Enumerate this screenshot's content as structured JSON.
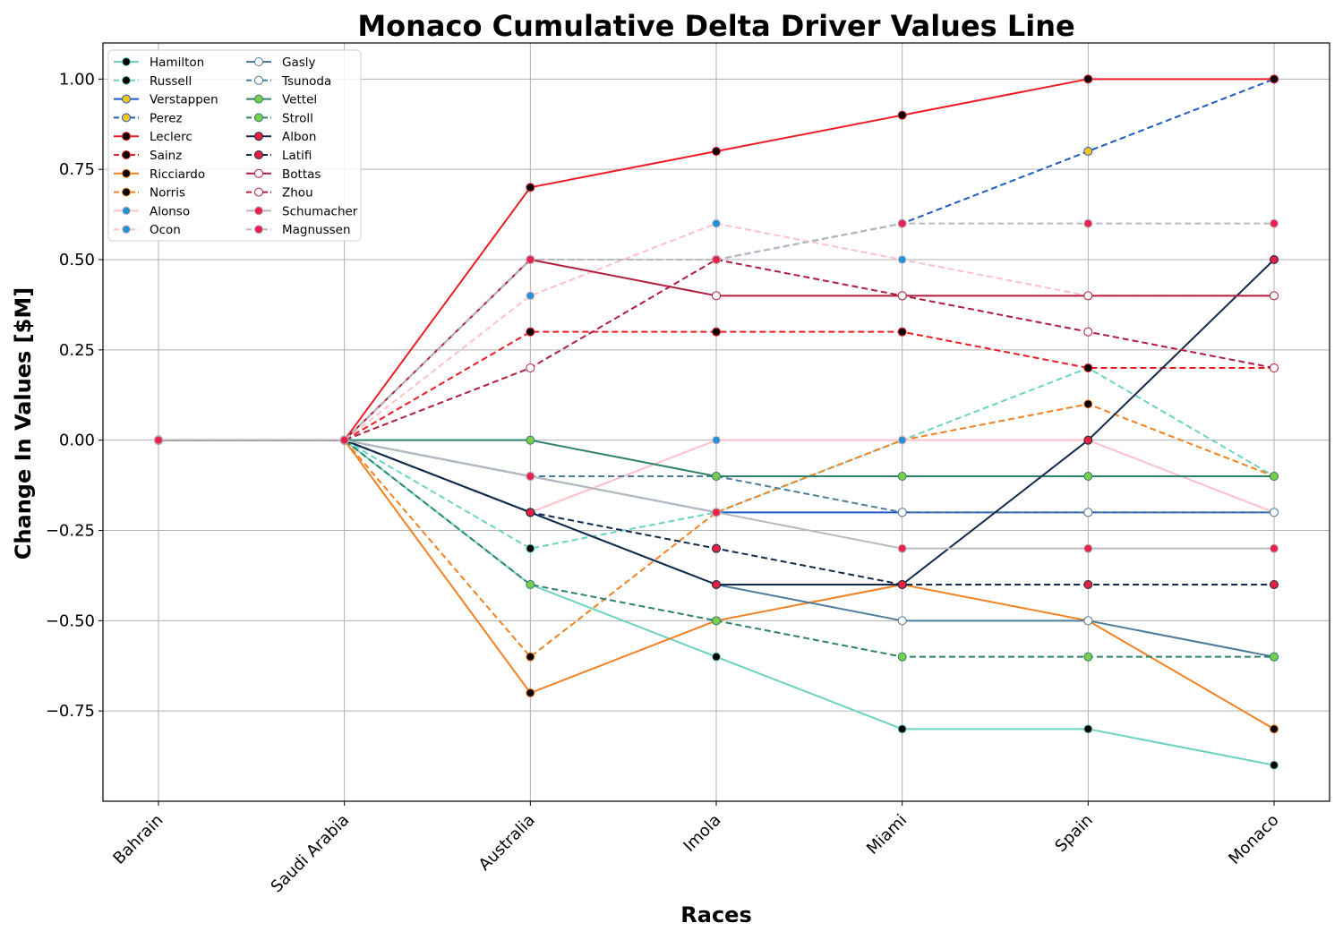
{
  "chart_data": {
    "type": "line",
    "title": "Monaco Cumulative Delta Driver Values Line",
    "xlabel": "Races",
    "ylabel": "Change In Values [$M]",
    "categories": [
      "Bahrain",
      "Saudi Arabia",
      "Australia",
      "Imola",
      "Miami",
      "Spain",
      "Monaco"
    ],
    "ylim": [
      -1.0,
      1.1
    ],
    "yticks": [
      -0.75,
      -0.5,
      -0.25,
      0.0,
      0.25,
      0.5,
      0.75,
      1.0
    ],
    "ytick_labels": [
      "−0.75",
      "−0.50",
      "−0.25",
      "0.00",
      "0.25",
      "0.50",
      "0.75",
      "1.00"
    ],
    "grid": true,
    "legend_position": "top-left",
    "legend_columns": 2,
    "series": [
      {
        "name": "Hamilton",
        "color": "#6CD3BF",
        "dash": false,
        "marker_face": "#000000",
        "marker_edge": "#6CD3BF",
        "values": [
          0,
          0,
          -0.4,
          -0.6,
          -0.8,
          -0.8,
          -0.9
        ]
      },
      {
        "name": "Russell",
        "color": "#6CD3BF",
        "dash": true,
        "marker_face": "#000000",
        "marker_edge": "#6CD3BF",
        "values": [
          0,
          0,
          -0.3,
          -0.2,
          0.0,
          0.2,
          -0.1
        ]
      },
      {
        "name": "Verstappen",
        "color": "#1E5BC6",
        "dash": false,
        "marker_face": "#F5C518",
        "marker_edge": "#1E5BC6",
        "values": [
          0,
          0,
          -0.1,
          -0.2,
          -0.2,
          -0.2,
          -0.2
        ]
      },
      {
        "name": "Perez",
        "color": "#1E5BC6",
        "dash": true,
        "marker_face": "#F5C518",
        "marker_edge": "#1E5BC6",
        "values": [
          0,
          0,
          0.5,
          0.5,
          0.6,
          0.8,
          1.0
        ]
      },
      {
        "name": "Leclerc",
        "color": "#ED1C24",
        "dash": false,
        "marker_face": "#000000",
        "marker_edge": "#ED1C24",
        "values": [
          0,
          0,
          0.7,
          0.8,
          0.9,
          1.0,
          1.0
        ]
      },
      {
        "name": "Sainz",
        "color": "#ED1C24",
        "dash": true,
        "marker_face": "#000000",
        "marker_edge": "#ED1C24",
        "values": [
          0,
          0,
          0.3,
          0.3,
          0.3,
          0.2,
          0.2
        ]
      },
      {
        "name": "Ricciardo",
        "color": "#F58020",
        "dash": false,
        "marker_face": "#000000",
        "marker_edge": "#F58020",
        "values": [
          0,
          0,
          -0.7,
          -0.5,
          -0.4,
          -0.5,
          -0.8
        ]
      },
      {
        "name": "Norris",
        "color": "#F58020",
        "dash": true,
        "marker_face": "#000000",
        "marker_edge": "#F58020",
        "values": [
          0,
          0,
          -0.6,
          -0.2,
          0.0,
          0.1,
          -0.1
        ]
      },
      {
        "name": "Alonso",
        "color": "#FFC0CB",
        "dash": false,
        "marker_face": "#2293D1",
        "marker_edge": "#FFC0CB",
        "values": [
          0,
          0,
          -0.2,
          0.0,
          0.0,
          0.0,
          -0.2
        ]
      },
      {
        "name": "Ocon",
        "color": "#FFC0CB",
        "dash": true,
        "marker_face": "#2293D1",
        "marker_edge": "#FFC0CB",
        "values": [
          0,
          0,
          0.4,
          0.6,
          0.5,
          0.4,
          0.4
        ]
      },
      {
        "name": "Gasly",
        "color": "#4E7C9B",
        "dash": false,
        "marker_face": "#FFFFFF",
        "marker_edge": "#4E7C9B",
        "values": [
          0,
          0,
          -0.2,
          -0.4,
          -0.5,
          -0.5,
          -0.6
        ]
      },
      {
        "name": "Tsunoda",
        "color": "#4E7C9B",
        "dash": true,
        "marker_face": "#FFFFFF",
        "marker_edge": "#4E7C9B",
        "values": [
          0,
          0,
          -0.1,
          -0.1,
          -0.2,
          -0.2,
          -0.2
        ]
      },
      {
        "name": "Vettel",
        "color": "#2D826D",
        "dash": false,
        "marker_face": "#7ACC4F",
        "marker_edge": "#2D826D",
        "values": [
          0,
          0,
          0.0,
          -0.1,
          -0.1,
          -0.1,
          -0.1
        ]
      },
      {
        "name": "Stroll",
        "color": "#2D826D",
        "dash": true,
        "marker_face": "#7ACC4F",
        "marker_edge": "#2D826D",
        "values": [
          0,
          0,
          -0.4,
          -0.5,
          -0.6,
          -0.6,
          -0.6
        ]
      },
      {
        "name": "Albon",
        "color": "#132A4C",
        "dash": false,
        "marker_face": "#E8213F",
        "marker_edge": "#132A4C",
        "values": [
          0,
          0,
          -0.2,
          -0.4,
          -0.4,
          0.0,
          0.5
        ]
      },
      {
        "name": "Latifi",
        "color": "#132A4C",
        "dash": true,
        "marker_face": "#E8213F",
        "marker_edge": "#132A4C",
        "values": [
          0,
          0,
          -0.2,
          -0.3,
          -0.4,
          -0.4,
          -0.4
        ]
      },
      {
        "name": "Bottas",
        "color": "#B11D3F",
        "dash": false,
        "marker_face": "#FFFFFF",
        "marker_edge": "#B11D3F",
        "values": [
          0,
          0,
          0.5,
          0.4,
          0.4,
          0.4,
          0.4
        ]
      },
      {
        "name": "Zhou",
        "color": "#B11D3F",
        "dash": true,
        "marker_face": "#FFFFFF",
        "marker_edge": "#B11D3F",
        "values": [
          0,
          0,
          0.2,
          0.5,
          0.4,
          0.3,
          0.2
        ]
      },
      {
        "name": "Schumacher",
        "color": "#B6BABD",
        "dash": false,
        "marker_face": "#E8214F",
        "marker_edge": "#B6BABD",
        "values": [
          0,
          0,
          -0.1,
          -0.2,
          -0.3,
          -0.3,
          -0.3
        ]
      },
      {
        "name": "Magnussen",
        "color": "#B6BABD",
        "dash": true,
        "marker_face": "#E8214F",
        "marker_edge": "#B6BABD",
        "values": [
          0,
          0,
          0.5,
          0.5,
          0.6,
          0.6,
          0.6
        ]
      }
    ]
  }
}
